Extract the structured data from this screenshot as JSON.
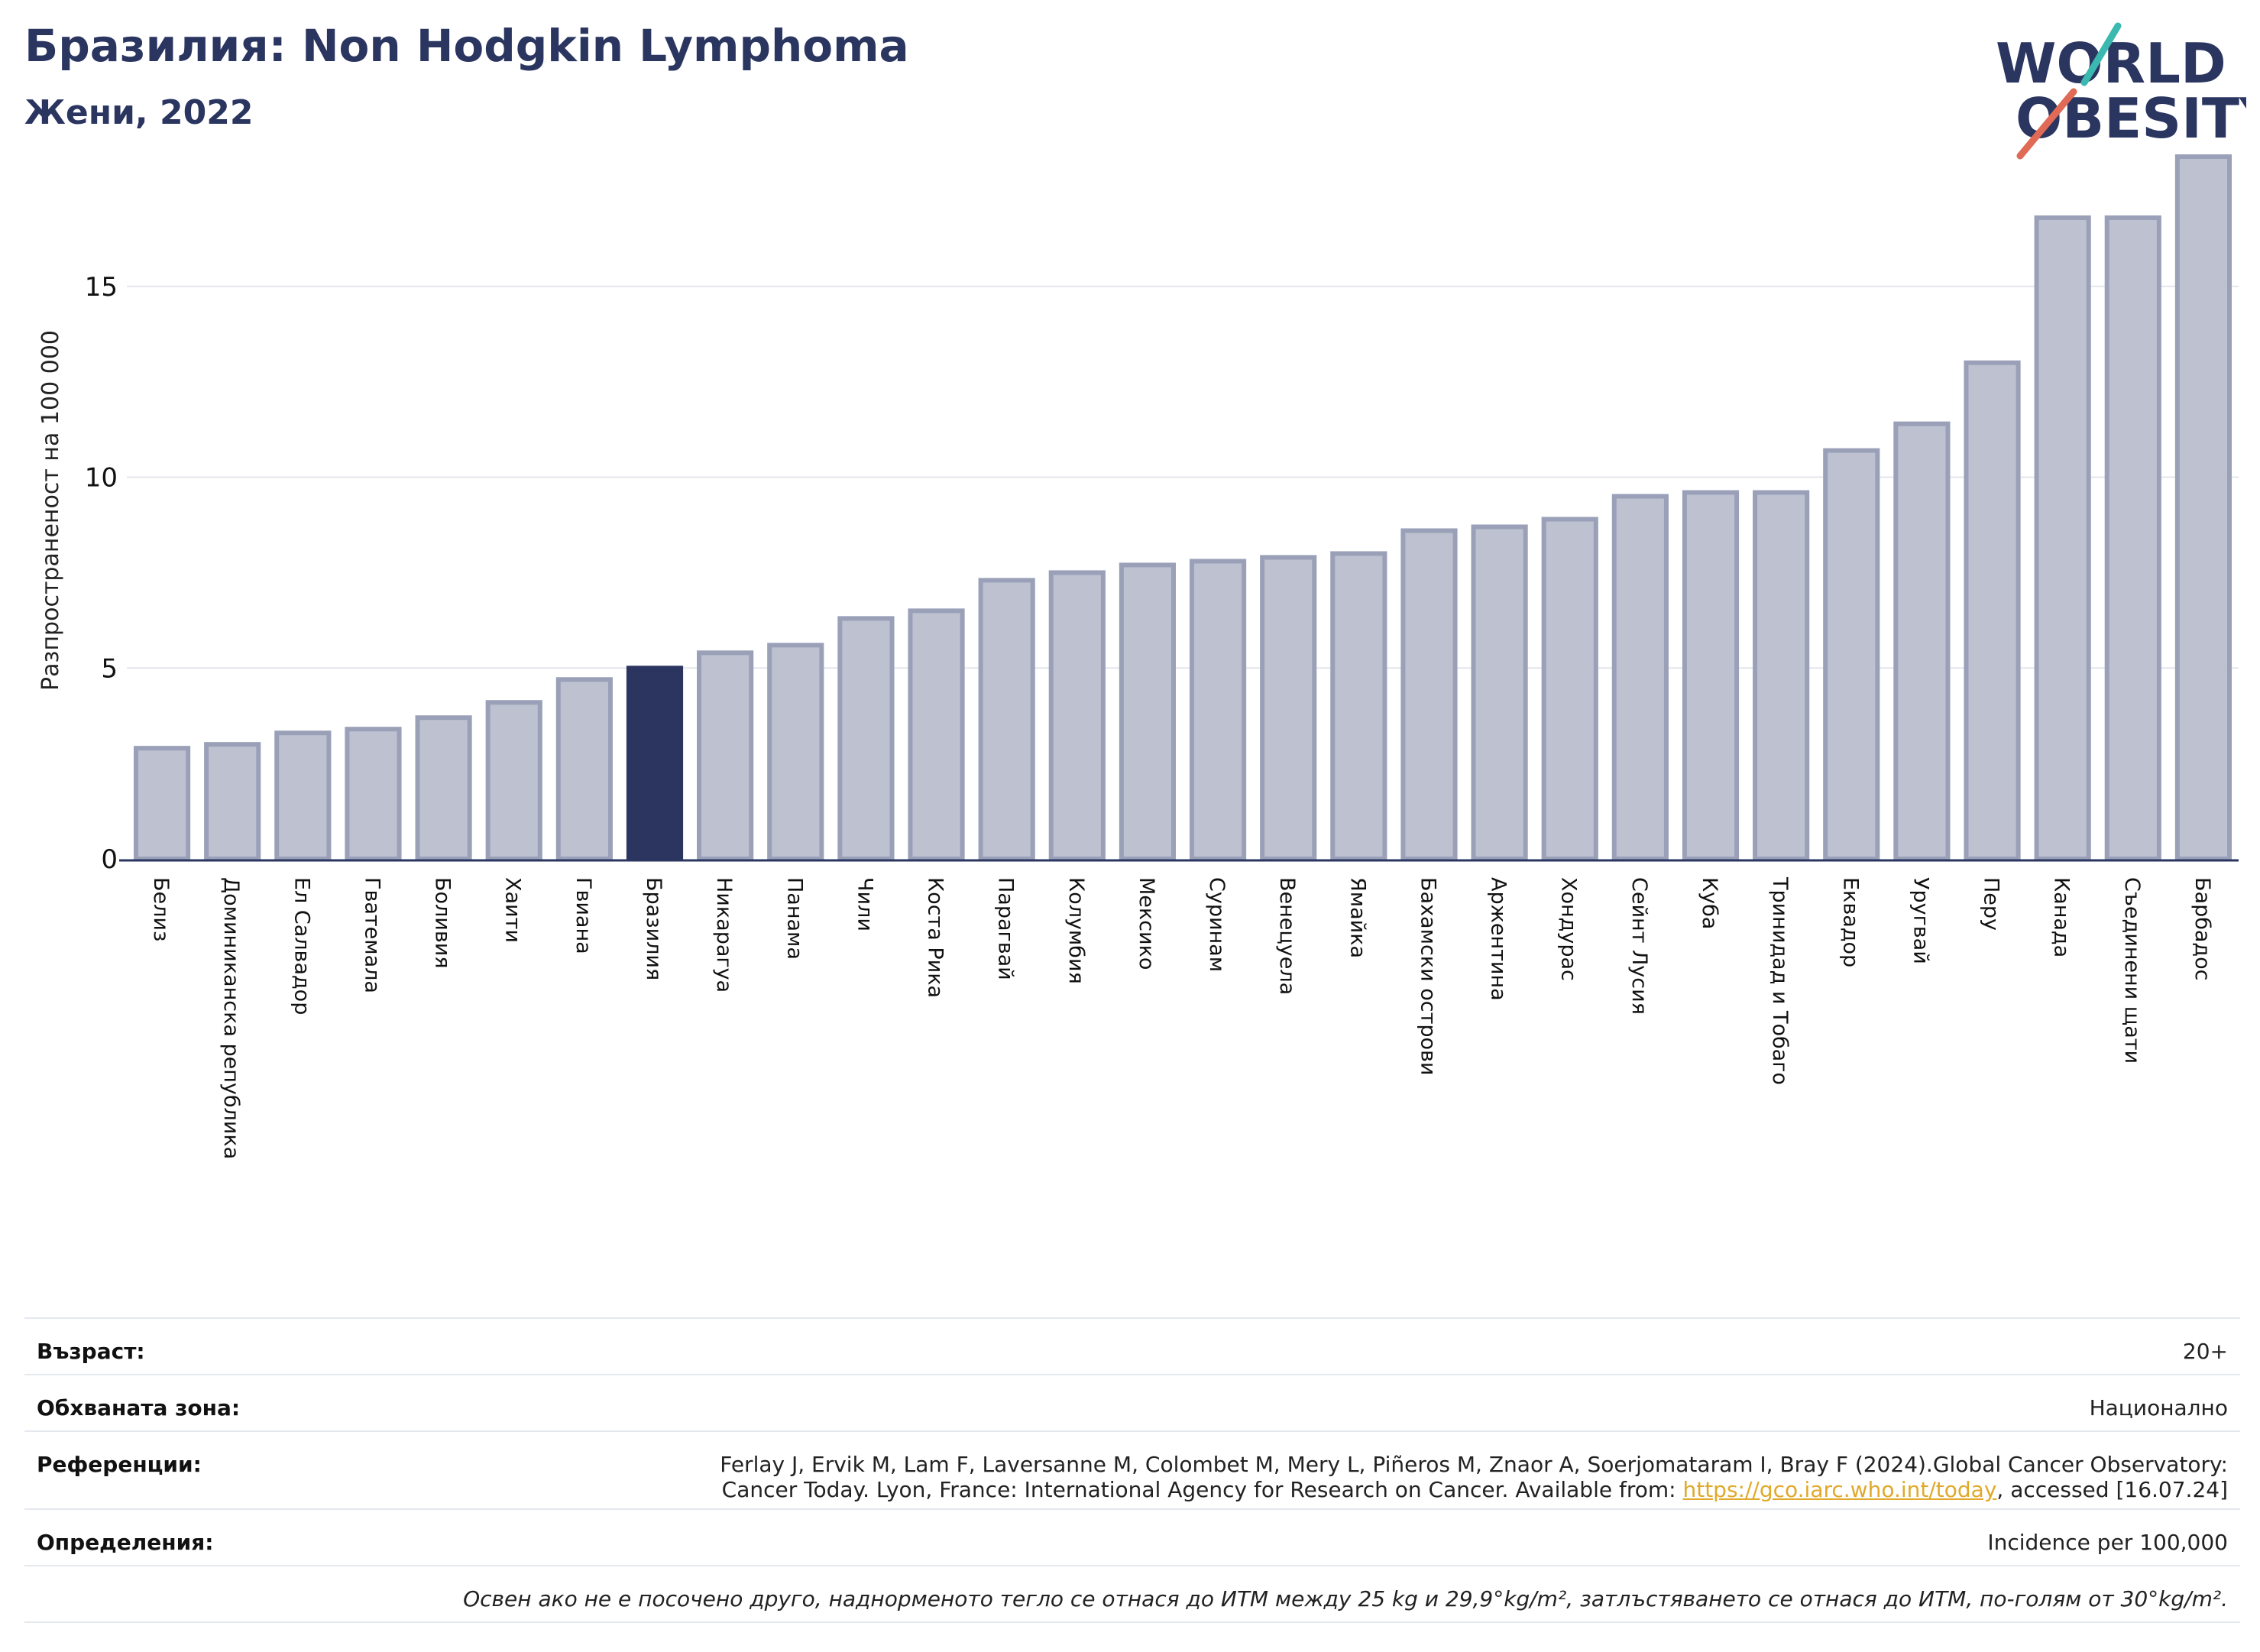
{
  "header": {
    "title": "Бразилия: Non Hodgkin Lymphoma",
    "subtitle": "Жени, 2022"
  },
  "logo": {
    "line1": "WORLD",
    "line2": "OBESITY"
  },
  "colors": {
    "highlight": "#2b3560",
    "bar": "#bdc1d0",
    "bar_edge": "#9aa0b8",
    "title": "#2a3560"
  },
  "chart_data": {
    "type": "bar",
    "ylabel": "Разпространеност  на 100 000",
    "ylim": [
      0,
      18.5
    ],
    "yticks": [
      0,
      5,
      10,
      15
    ],
    "grid": true,
    "highlight": "Бразилия",
    "categories": [
      "Белиз",
      "Доминиканска република",
      "Ел Салвадор",
      "Гватемала",
      "Боливия",
      "Хаити",
      "Гвиана",
      "Бразилия",
      "Никарагуа",
      "Панама",
      "Чили",
      "Коста Рика",
      "Парагвай",
      "Колумбия",
      "Мексико",
      "Суринам",
      "Венецуела",
      "Ямайка",
      "Бахамски острови",
      "Аржентина",
      "Хондурас",
      "Сейнт Лусия",
      "Куба",
      "Тринидад и Тобаго",
      "Еквадор",
      "Уругвай",
      "Перу",
      "Канада",
      "Съединени щати",
      "Барбадос"
    ],
    "values": [
      2.9,
      3.0,
      3.3,
      3.4,
      3.7,
      4.1,
      4.7,
      5.0,
      5.4,
      5.6,
      6.3,
      6.5,
      7.3,
      7.5,
      7.7,
      7.8,
      7.9,
      8.0,
      8.6,
      8.7,
      8.9,
      9.5,
      9.6,
      9.6,
      10.7,
      11.4,
      13.0,
      16.8,
      16.8,
      18.4
    ]
  },
  "info": {
    "age_label": "Възраст:",
    "age_value": "20+",
    "area_label": "Обхваната зона:",
    "area_value": "Национално",
    "refs_label": "Референции:",
    "refs_line1": "Ferlay J, Ervik M, Lam F, Laversanne M, Colombet M, Mery L, Piñeros M, Znaor A, Soerjomataram I, Bray F (2024).Global Cancer Observatory:",
    "refs_line2_a": "Cancer Today. Lyon, France: International Agency for Research on Cancer. Available from: ",
    "refs_link": "https://gco.iarc.who.int/today",
    "refs_line2_b": ", accessed [16.07.24]",
    "def_label": "Определения:",
    "def_value": "Incidence per 100,000",
    "note": "Освен ако не е посочено друго, наднорменото тегло се отнася до ИТМ между 25 kg и 29,9°kg/m², затлъстяването се отнася до ИТМ, по-голям от 30°kg/m²."
  }
}
